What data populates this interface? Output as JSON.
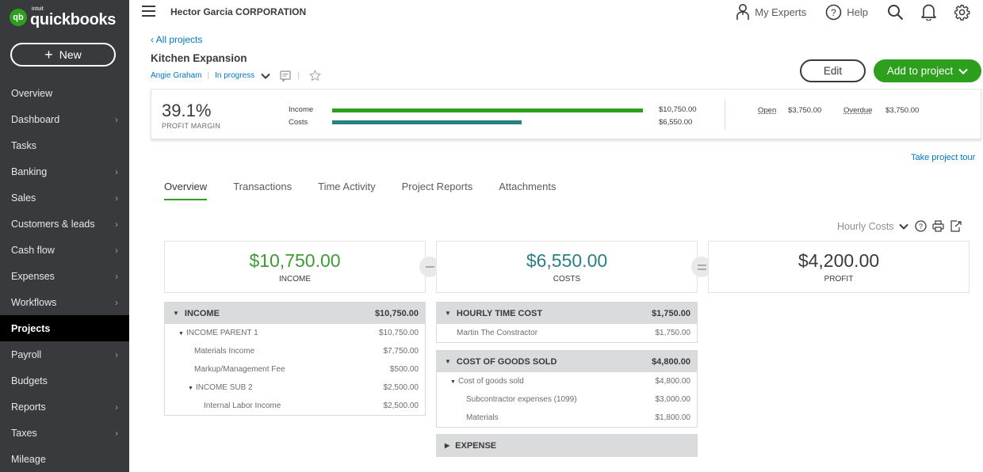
{
  "brand": {
    "badge": "qb",
    "intuit": "intuit",
    "name": "quickbooks"
  },
  "sidebar": {
    "new_label": "New",
    "new_plus": "+",
    "items": [
      {
        "label": "Overview",
        "has_chevron": false
      },
      {
        "label": "Dashboard",
        "has_chevron": true
      },
      {
        "label": "Tasks",
        "has_chevron": false
      },
      {
        "label": "Banking",
        "has_chevron": true
      },
      {
        "label": "Sales",
        "has_chevron": true
      },
      {
        "label": "Customers & leads",
        "has_chevron": true
      },
      {
        "label": "Cash flow",
        "has_chevron": true
      },
      {
        "label": "Expenses",
        "has_chevron": true
      },
      {
        "label": "Workflows",
        "has_chevron": true
      },
      {
        "label": "Projects",
        "has_chevron": false,
        "active": true
      },
      {
        "label": "Payroll",
        "has_chevron": true
      },
      {
        "label": "Budgets",
        "has_chevron": false
      },
      {
        "label": "Reports",
        "has_chevron": true
      },
      {
        "label": "Taxes",
        "has_chevron": true
      },
      {
        "label": "Mileage",
        "has_chevron": false
      }
    ]
  },
  "topbar": {
    "company": "Hector Garcia CORPORATION",
    "my_experts": "My Experts",
    "help": "Help",
    "icons": [
      "menu-icon",
      "person-icon",
      "help-icon",
      "search-icon",
      "bell-icon",
      "gear-icon"
    ]
  },
  "project": {
    "back_link": "All projects",
    "name": "Kitchen Expansion",
    "customer": "Angie Graham",
    "status": "In progress",
    "edit_label": "Edit",
    "add_label": "Add to project"
  },
  "summary": {
    "profit_margin": "39.1%",
    "profit_margin_label": "PROFIT MARGIN",
    "income_label": "Income",
    "costs_label": "Costs",
    "income_amount": "$10,750.00",
    "costs_amount": "$6,550.00",
    "income_fraction": 1.0,
    "costs_fraction": 0.609,
    "open_label": "Open",
    "open_amount": "$3,750.00",
    "overdue_label": "Overdue",
    "overdue_amount": "$3,750.00"
  },
  "tour_link": "Take project tour",
  "tabs": [
    "Overview",
    "Transactions",
    "Time Activity",
    "Project Reports",
    "Attachments"
  ],
  "filter": {
    "label": "Hourly Costs"
  },
  "totals": {
    "income": {
      "amount": "$10,750.00",
      "label": "INCOME"
    },
    "costs": {
      "amount": "$6,550.00",
      "label": "COSTS"
    },
    "profit": {
      "amount": "$4,200.00",
      "label": "PROFIT"
    }
  },
  "income_table": {
    "title": "INCOME",
    "total": "$10,750.00",
    "rows": [
      {
        "label": "INCOME PARENT 1",
        "amount": "$10,750.00",
        "level": 1,
        "expand": true
      },
      {
        "label": "Materials Income",
        "amount": "$7,750.00",
        "level": 2,
        "expand": false
      },
      {
        "label": "Markup/Management Fee",
        "amount": "$500.00",
        "level": 2,
        "expand": false
      },
      {
        "label": "INCOME SUB 2",
        "amount": "$2,500.00",
        "level": 2,
        "expand": true
      },
      {
        "label": "Internal Labor Income",
        "amount": "$2,500.00",
        "level": 3,
        "expand": false
      }
    ]
  },
  "hourly_table": {
    "title": "HOURLY TIME COST",
    "total": "$1,750.00",
    "rows": [
      {
        "label": "Martin The Constractor",
        "amount": "$1,750.00"
      }
    ]
  },
  "cogs_table": {
    "title": "COST OF GOODS SOLD",
    "total": "$4,800.00",
    "rows": [
      {
        "label": "Cost of goods sold",
        "amount": "$4,800.00",
        "level": 1,
        "expand": true
      },
      {
        "label": "Subcontractor expenses (1099)",
        "amount": "$3,000.00",
        "level": 2,
        "expand": false
      },
      {
        "label": "Materials",
        "amount": "$1,800.00",
        "level": 2,
        "expand": false
      }
    ]
  },
  "expense_table": {
    "title": "EXPENSE"
  },
  "colors": {
    "brand_green": "#2ca01c",
    "income_text": "#3d9b35",
    "costs_text": "#2a8080",
    "costs_bar": "#2a7f7f",
    "sidebar_bg": "#393a3d",
    "link_blue": "#0077c5"
  }
}
